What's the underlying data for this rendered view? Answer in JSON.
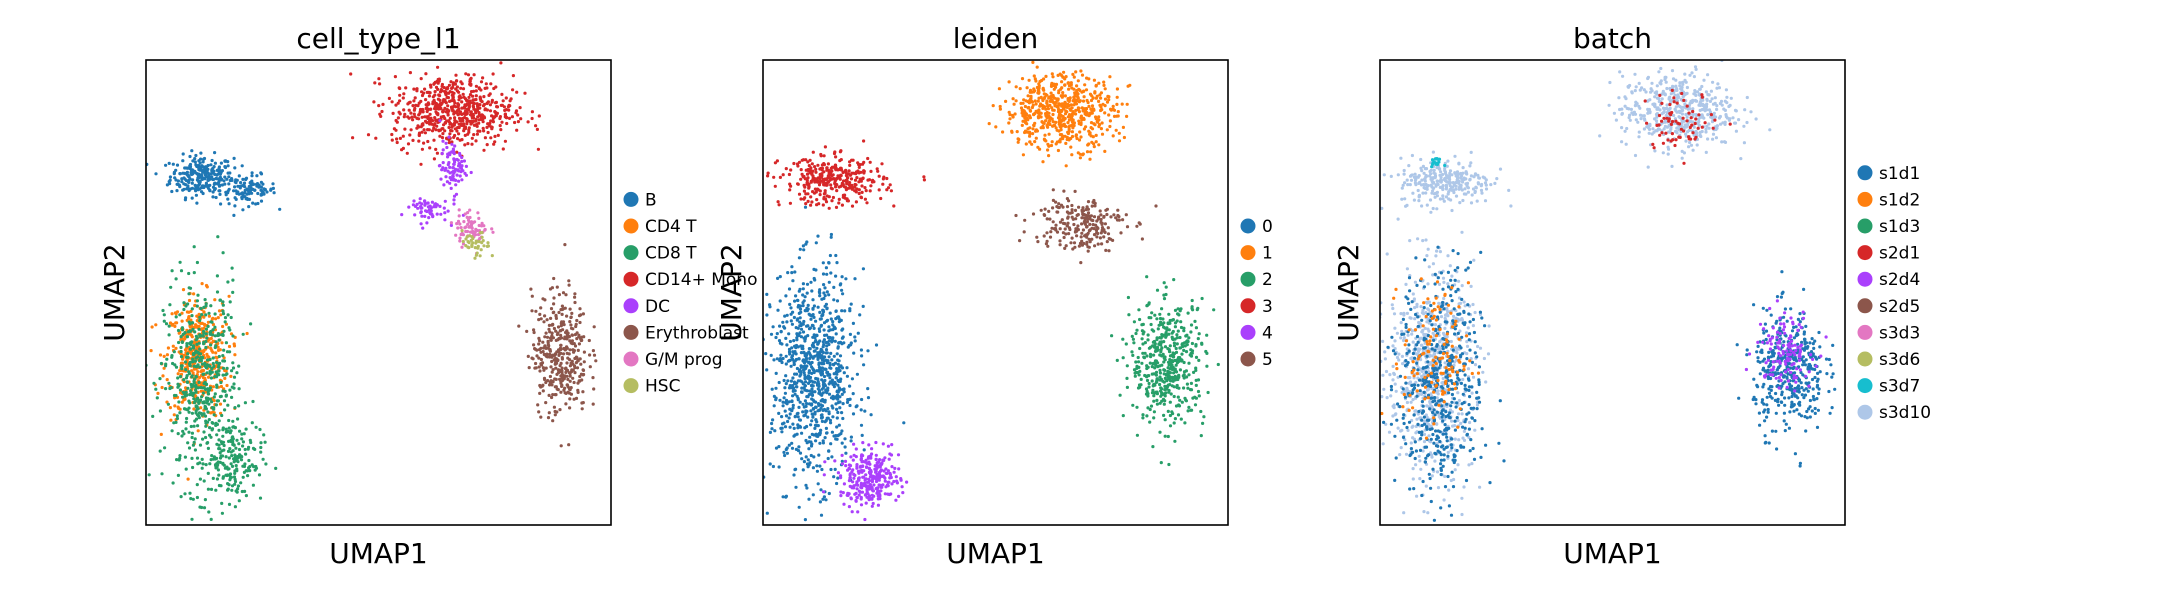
{
  "chart_data": [
    {
      "type": "scatter",
      "title": "cell_type_l1",
      "xlabel": "UMAP1",
      "ylabel": "UMAP2",
      "xlim": [
        0,
        100
      ],
      "ylim": [
        0,
        100
      ],
      "ticks": "none",
      "grid": false,
      "legend_position": "right",
      "legend": [
        {
          "label": "B",
          "color": "#1f77b4"
        },
        {
          "label": "CD4 T",
          "color": "#ff7f0e"
        },
        {
          "label": "CD8 T",
          "color": "#279e68"
        },
        {
          "label": "CD14+ Mono",
          "color": "#d62728"
        },
        {
          "label": "DC",
          "color": "#aa40fc"
        },
        {
          "label": "Erythroblast",
          "color": "#8c564b"
        },
        {
          "label": "G/M prog",
          "color": "#e377c2"
        },
        {
          "label": "HSC",
          "color": "#b5bd61"
        }
      ],
      "clusters": [
        {
          "category": "B",
          "color": "#1f77b4",
          "x": 12,
          "y": 75,
          "sx": 3.4,
          "sy": 2.2,
          "n": 260
        },
        {
          "category": "B",
          "color": "#1f77b4",
          "x": 22,
          "y": 72,
          "sx": 3.0,
          "sy": 1.6,
          "n": 110
        },
        {
          "category": "CD4 T",
          "color": "#ff7f0e",
          "x": 11,
          "y": 36,
          "sx": 3.4,
          "sy": 6.5,
          "n": 420
        },
        {
          "category": "CD8 T",
          "color": "#279e68",
          "x": 12,
          "y": 30,
          "sx": 4.0,
          "sy": 11.0,
          "n": 520
        },
        {
          "category": "CD8 T",
          "color": "#279e68",
          "x": 19,
          "y": 14,
          "sx": 3.0,
          "sy": 4.5,
          "n": 160
        },
        {
          "category": "CD14+ Mono",
          "color": "#d62728",
          "x": 66,
          "y": 89,
          "sx": 6.5,
          "sy": 3.8,
          "n": 620
        },
        {
          "category": "DC",
          "color": "#aa40fc",
          "x": 66,
          "y": 77,
          "sx": 1.4,
          "sy": 2.8,
          "n": 90
        },
        {
          "category": "DC",
          "color": "#aa40fc",
          "x": 60,
          "y": 68,
          "sx": 2.5,
          "sy": 1.4,
          "n": 60
        },
        {
          "category": "Erythroblast",
          "color": "#8c564b",
          "x": 89,
          "y": 37,
          "sx": 3.0,
          "sy": 6.5,
          "n": 380
        },
        {
          "category": "G/M prog",
          "color": "#e377c2",
          "x": 70,
          "y": 64,
          "sx": 1.8,
          "sy": 1.8,
          "n": 70
        },
        {
          "category": "HSC",
          "color": "#b5bd61",
          "x": 71,
          "y": 60,
          "sx": 1.5,
          "sy": 1.5,
          "n": 40
        }
      ]
    },
    {
      "type": "scatter",
      "title": "leiden",
      "xlabel": "UMAP1",
      "ylabel": "UMAP2",
      "xlim": [
        0,
        100
      ],
      "ylim": [
        0,
        100
      ],
      "ticks": "none",
      "grid": false,
      "legend_position": "right",
      "legend": [
        {
          "label": "0",
          "color": "#1f77b4"
        },
        {
          "label": "1",
          "color": "#ff7f0e"
        },
        {
          "label": "2",
          "color": "#279e68"
        },
        {
          "label": "3",
          "color": "#d62728"
        },
        {
          "label": "4",
          "color": "#aa40fc"
        },
        {
          "label": "5",
          "color": "#8c564b"
        }
      ],
      "clusters": [
        {
          "category": "0",
          "color": "#1f77b4",
          "x": 11,
          "y": 32,
          "sx": 4.5,
          "sy": 11.0,
          "n": 900
        },
        {
          "category": "1",
          "color": "#ff7f0e",
          "x": 64,
          "y": 89,
          "sx": 6.0,
          "sy": 4.0,
          "n": 600
        },
        {
          "category": "2",
          "color": "#279e68",
          "x": 87,
          "y": 35,
          "sx": 4.0,
          "sy": 6.5,
          "n": 480
        },
        {
          "category": "3",
          "color": "#d62728",
          "x": 15,
          "y": 74,
          "sx": 5.5,
          "sy": 2.6,
          "n": 340
        },
        {
          "category": "4",
          "color": "#aa40fc",
          "x": 23,
          "y": 10,
          "sx": 3.2,
          "sy": 3.0,
          "n": 300
        },
        {
          "category": "5",
          "color": "#8c564b",
          "x": 68,
          "y": 65,
          "sx": 5.0,
          "sy": 3.0,
          "n": 220
        }
      ]
    },
    {
      "type": "scatter",
      "title": "batch",
      "xlabel": "UMAP1",
      "ylabel": "UMAP2",
      "xlim": [
        0,
        100
      ],
      "ylim": [
        0,
        100
      ],
      "ticks": "none",
      "grid": false,
      "legend_position": "right",
      "legend": [
        {
          "label": "s1d1",
          "color": "#1f77b4"
        },
        {
          "label": "s1d2",
          "color": "#ff7f0e"
        },
        {
          "label": "s1d3",
          "color": "#279e68"
        },
        {
          "label": "s2d1",
          "color": "#d62728"
        },
        {
          "label": "s2d4",
          "color": "#aa40fc"
        },
        {
          "label": "s2d5",
          "color": "#8c564b"
        },
        {
          "label": "s3d3",
          "color": "#e377c2"
        },
        {
          "label": "s3d6",
          "color": "#b5bd61"
        },
        {
          "label": "s3d7",
          "color": "#17becf"
        },
        {
          "label": "s3d10",
          "color": "#aec7e8"
        }
      ],
      "clusters": [
        {
          "category": "s3d10",
          "color": "#aec7e8",
          "x": 11,
          "y": 33,
          "sx": 4.5,
          "sy": 11.0,
          "n": 700
        },
        {
          "category": "s1d1",
          "color": "#1f77b4",
          "x": 13,
          "y": 30,
          "sx": 4.5,
          "sy": 12.0,
          "n": 500
        },
        {
          "category": "s1d2",
          "color": "#ff7f0e",
          "x": 12,
          "y": 36,
          "sx": 3.5,
          "sy": 8.0,
          "n": 120
        },
        {
          "category": "s3d10",
          "color": "#aec7e8",
          "x": 14,
          "y": 74,
          "sx": 5.0,
          "sy": 2.5,
          "n": 280
        },
        {
          "category": "s3d10",
          "color": "#aec7e8",
          "x": 64,
          "y": 89,
          "sx": 6.0,
          "sy": 4.0,
          "n": 500
        },
        {
          "category": "s2d1",
          "color": "#d62728",
          "x": 65,
          "y": 87,
          "sx": 4.0,
          "sy": 3.0,
          "n": 70
        },
        {
          "category": "s1d1",
          "color": "#1f77b4",
          "x": 88,
          "y": 33,
          "sx": 3.8,
          "sy": 6.5,
          "n": 420
        },
        {
          "category": "s2d4",
          "color": "#aa40fc",
          "x": 87,
          "y": 38,
          "sx": 3.0,
          "sy": 4.0,
          "n": 120
        },
        {
          "category": "s3d7",
          "color": "#17becf",
          "x": 12,
          "y": 78,
          "sx": 0.6,
          "sy": 0.4,
          "n": 15
        }
      ]
    }
  ]
}
